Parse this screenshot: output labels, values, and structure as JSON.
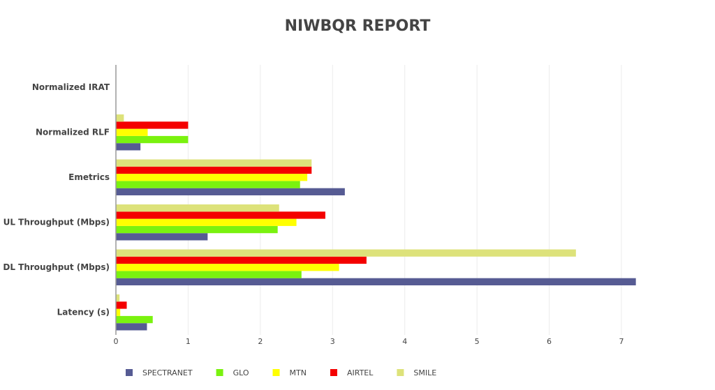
{
  "chart_data": {
    "type": "hbar",
    "title": "NIWBQR REPORT",
    "categories": [
      "Normalized IRAT",
      "Normalized RLF",
      "Emetrics",
      "UL Throughput (Mbps)",
      "DL Throughput (Mbps)",
      "Latency (s)"
    ],
    "series": [
      {
        "name": "SPECTRANET",
        "color": "#565b93",
        "values": [
          0,
          0.34,
          3.17,
          1.27,
          7.2,
          0.43
        ]
      },
      {
        "name": "GLO",
        "color": "#7af20f",
        "values": [
          0,
          1.0,
          2.55,
          2.24,
          2.57,
          0.51
        ]
      },
      {
        "name": "MTN",
        "color": "#ffff00",
        "values": [
          0,
          0.44,
          2.65,
          2.5,
          3.09,
          0.06
        ]
      },
      {
        "name": "AIRTEL",
        "color": "#f40000",
        "values": [
          0,
          1.0,
          2.71,
          2.9,
          3.47,
          0.15
        ]
      },
      {
        "name": "SMILE",
        "color": "#dde27a",
        "values": [
          0,
          0.11,
          2.71,
          2.26,
          6.37,
          0.05
        ]
      }
    ],
    "xlim": [
      0,
      7.3
    ],
    "xticks": [
      0,
      1,
      2,
      3,
      4,
      5,
      6,
      7
    ],
    "grid": true
  }
}
